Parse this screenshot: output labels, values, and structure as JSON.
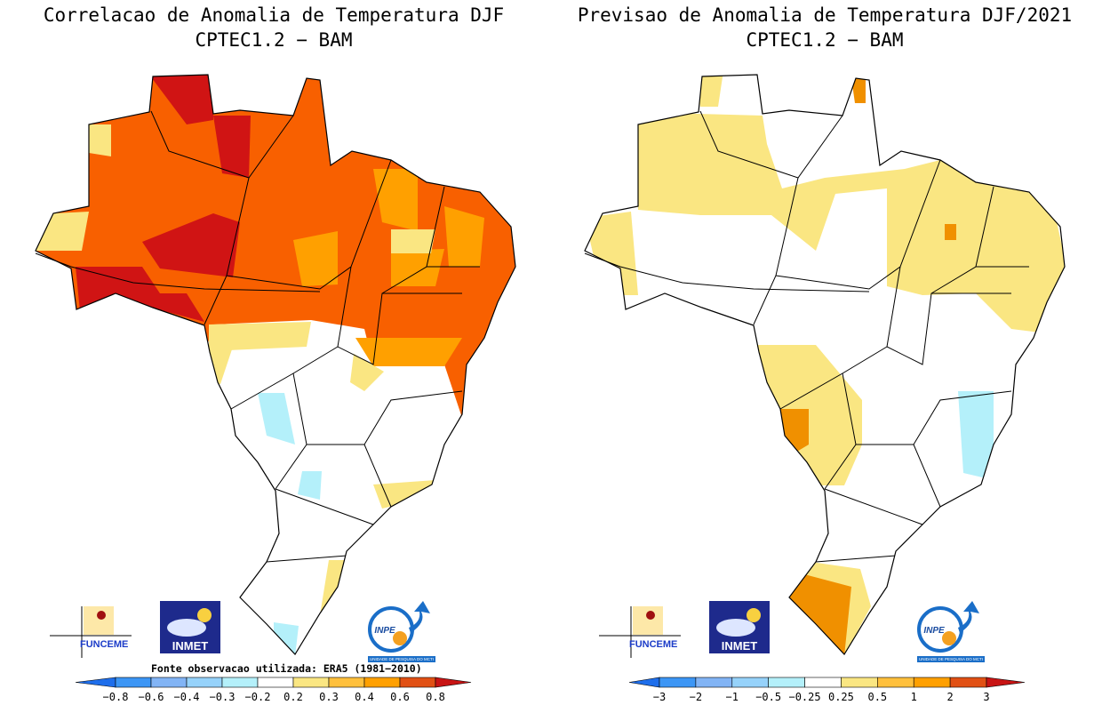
{
  "panels": [
    {
      "title": "Correlacao de Anomalia de Temperatura DJF",
      "subtitle": "CPTEC1.2 − BAM",
      "colorbar_labels": [
        "−0.8",
        "−0.6",
        "−0.4",
        "−0.3",
        "−0.2",
        "0.2",
        "0.3",
        "0.4",
        "0.6",
        "0.8"
      ],
      "source_note": "Fonte observacao utilizada: ERA5 (1981−2010)",
      "logos": {
        "funceme": "FUNCEME",
        "inmet": "INMET",
        "inpe": "INPE",
        "inpe_caption": "UNIDADE DE PESQUISA DO MCTI"
      }
    },
    {
      "title": "Previsao de Anomalia de Temperatura DJF/2021",
      "subtitle": "CPTEC1.2 − BAM",
      "colorbar_labels": [
        "−3",
        "−2",
        "−1",
        "−0.5",
        "−0.25",
        "0.25",
        "0.5",
        "1",
        "2",
        "3"
      ],
      "logos": {
        "funceme": "FUNCEME",
        "inmet": "INMET",
        "inpe": "INPE",
        "inpe_caption": "UNIDADE DE PESQUISA DO MCTI"
      }
    }
  ]
}
